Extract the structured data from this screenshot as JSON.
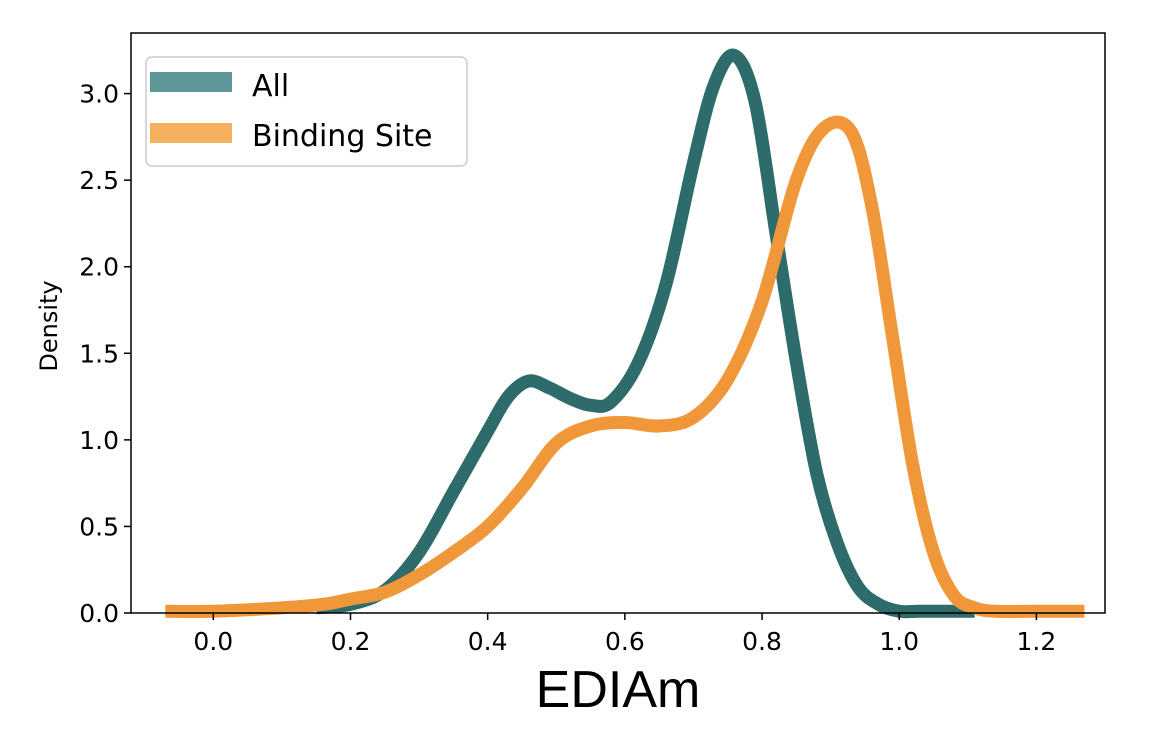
{
  "chart_data": {
    "type": "line",
    "title": "",
    "xlabel": "EDIAm",
    "ylabel": "Density",
    "xlim": [
      -0.12,
      1.3
    ],
    "ylim": [
      0.0,
      3.35
    ],
    "xticks": [
      "0.0",
      "0.2",
      "0.4",
      "0.6",
      "0.8",
      "1.0",
      "1.2"
    ],
    "xtick_values": [
      0.0,
      0.2,
      0.4,
      0.6,
      0.8,
      1.0,
      1.2
    ],
    "yticks": [
      "0.0",
      "0.5",
      "1.0",
      "1.5",
      "2.0",
      "2.5",
      "3.0"
    ],
    "ytick_values": [
      0.0,
      0.5,
      1.0,
      1.5,
      2.0,
      2.5,
      3.0
    ],
    "grid": false,
    "legend_position": "top-left",
    "series": [
      {
        "name": "All",
        "color": "#2e6b6b",
        "legend_color": "#5e9797",
        "x": [
          0.15,
          0.2,
          0.25,
          0.3,
          0.35,
          0.4,
          0.43,
          0.46,
          0.49,
          0.52,
          0.55,
          0.58,
          0.62,
          0.66,
          0.7,
          0.73,
          0.76,
          0.79,
          0.82,
          0.85,
          0.88,
          0.91,
          0.94,
          0.97,
          1.0,
          1.03,
          1.07,
          1.11
        ],
        "y": [
          0.03,
          0.05,
          0.13,
          0.35,
          0.7,
          1.05,
          1.25,
          1.34,
          1.3,
          1.24,
          1.2,
          1.22,
          1.45,
          1.9,
          2.6,
          3.05,
          3.22,
          2.95,
          2.2,
          1.45,
          0.8,
          0.4,
          0.15,
          0.05,
          0.01,
          0.01,
          0.01,
          0.01
        ]
      },
      {
        "name": "Binding Site",
        "color": "#f0973a",
        "legend_color": "#f4b05f",
        "x": [
          -0.07,
          0.0,
          0.1,
          0.16,
          0.2,
          0.25,
          0.3,
          0.35,
          0.4,
          0.45,
          0.5,
          0.55,
          0.6,
          0.65,
          0.7,
          0.75,
          0.8,
          0.85,
          0.89,
          0.93,
          0.96,
          0.99,
          1.02,
          1.05,
          1.08,
          1.11,
          1.14,
          1.2,
          1.27
        ],
        "y": [
          0.01,
          0.01,
          0.03,
          0.05,
          0.08,
          0.12,
          0.22,
          0.35,
          0.5,
          0.72,
          0.98,
          1.08,
          1.1,
          1.08,
          1.13,
          1.35,
          1.8,
          2.5,
          2.8,
          2.78,
          2.35,
          1.6,
          0.85,
          0.35,
          0.1,
          0.03,
          0.01,
          0.01,
          0.01
        ]
      }
    ]
  }
}
